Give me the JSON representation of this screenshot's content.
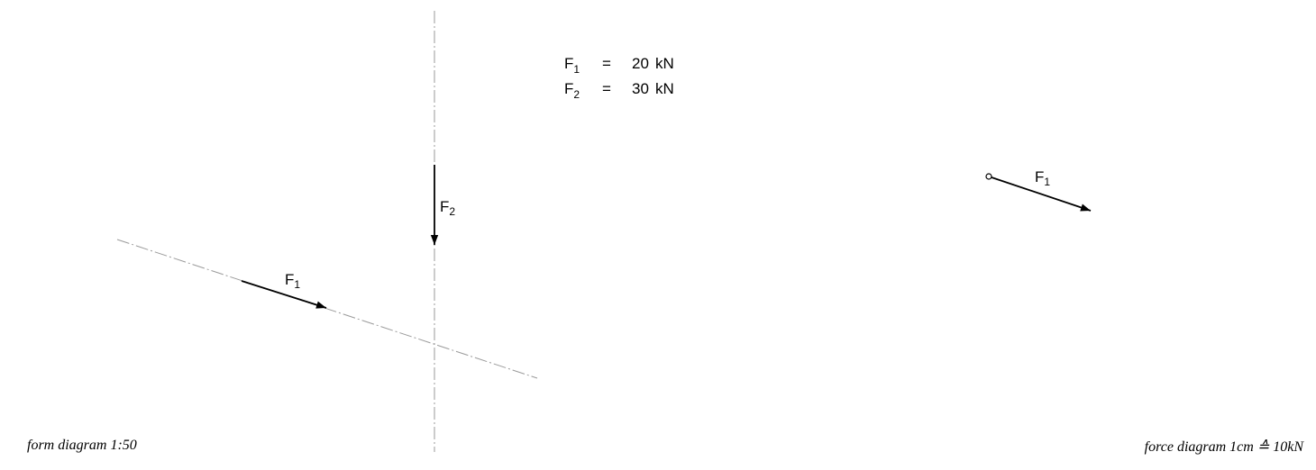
{
  "legend": {
    "f1": {
      "symbol": "F",
      "sub": "1",
      "eq": "=",
      "value": "20",
      "unit": "kN"
    },
    "f2": {
      "symbol": "F",
      "sub": "2",
      "eq": "=",
      "value": "30",
      "unit": "kN"
    }
  },
  "form_diagram": {
    "caption": "form diagram 1:50",
    "f1_label": {
      "symbol": "F",
      "sub": "1"
    },
    "f2_label": {
      "symbol": "F",
      "sub": "2"
    }
  },
  "force_diagram": {
    "caption": "force diagram 1cm ≙ 10kN",
    "f1_label": {
      "symbol": "F",
      "sub": "1"
    }
  }
}
